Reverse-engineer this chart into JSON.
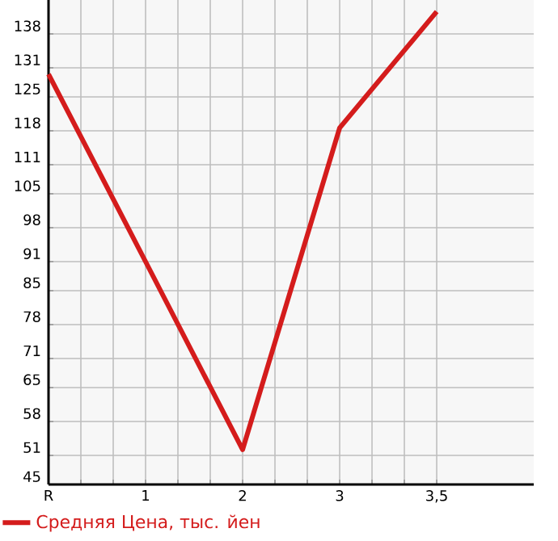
{
  "chart_data": {
    "type": "line",
    "categories": [
      "R",
      "1",
      "2",
      "3",
      "3,5"
    ],
    "series": [
      {
        "name": "Средняя Цена, тыс. йен",
        "color": "#d41c1c",
        "values": [
          129.7,
          91,
          52.2,
          118.6,
          142.6
        ]
      }
    ],
    "ylim": [
      45,
      145
    ],
    "yticks": [
      45,
      51,
      58,
      65,
      71,
      78,
      85,
      91,
      98,
      105,
      111,
      118,
      125,
      131,
      138
    ],
    "grid": true,
    "legend": "bottom",
    "marker": "none",
    "line_style": "solid"
  }
}
